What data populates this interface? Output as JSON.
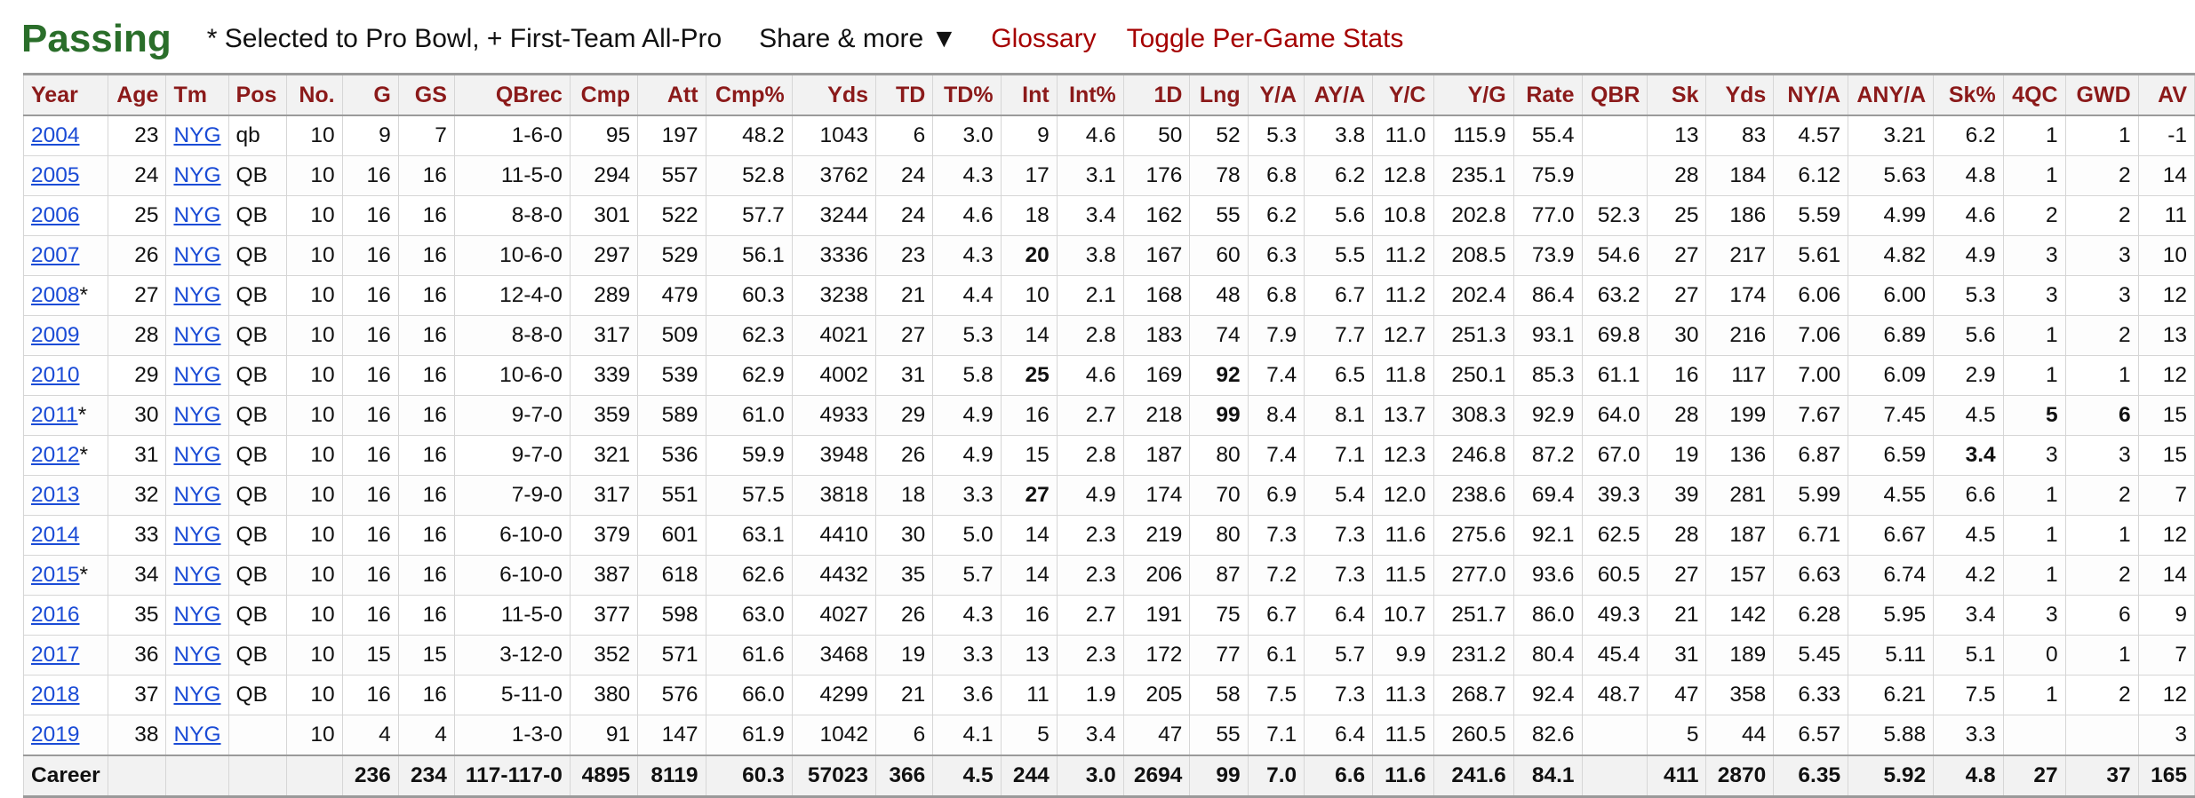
{
  "header": {
    "title": "Passing",
    "legend": "* Selected to Pro Bowl, + First-Team All-Pro",
    "share": "Share & more ▼",
    "glossary": "Glossary",
    "toggle": "Toggle Per-Game Stats"
  },
  "table": {
    "columns": [
      "Year",
      "Age",
      "Tm",
      "Pos",
      "No.",
      "G",
      "GS",
      "QBrec",
      "Cmp",
      "Att",
      "Cmp%",
      "Yds",
      "TD",
      "TD%",
      "Int",
      "Int%",
      "1D",
      "Lng",
      "Y/A",
      "AY/A",
      "Y/C",
      "Y/G",
      "Rate",
      "QBR",
      "Sk",
      "Yds",
      "NY/A",
      "ANY/A",
      "Sk%",
      "4QC",
      "GWD",
      "AV"
    ],
    "rows": [
      [
        "2004",
        "23",
        "NYG",
        "qb",
        "10",
        "9",
        "7",
        "1-6-0",
        "95",
        "197",
        "48.2",
        "1043",
        "6",
        "3.0",
        "9",
        "4.6",
        "50",
        "52",
        "5.3",
        "3.8",
        "11.0",
        "115.9",
        "55.4",
        "",
        "13",
        "83",
        "4.57",
        "3.21",
        "6.2",
        "1",
        "1",
        "-1"
      ],
      [
        "2005",
        "24",
        "NYG",
        "QB",
        "10",
        "16",
        "16",
        "11-5-0",
        "294",
        "557",
        "52.8",
        "3762",
        "24",
        "4.3",
        "17",
        "3.1",
        "176",
        "78",
        "6.8",
        "6.2",
        "12.8",
        "235.1",
        "75.9",
        "",
        "28",
        "184",
        "6.12",
        "5.63",
        "4.8",
        "1",
        "2",
        "14"
      ],
      [
        "2006",
        "25",
        "NYG",
        "QB",
        "10",
        "16",
        "16",
        "8-8-0",
        "301",
        "522",
        "57.7",
        "3244",
        "24",
        "4.6",
        "18",
        "3.4",
        "162",
        "55",
        "6.2",
        "5.6",
        "10.8",
        "202.8",
        "77.0",
        "52.3",
        "25",
        "186",
        "5.59",
        "4.99",
        "4.6",
        "2",
        "2",
        "11"
      ],
      [
        "2007",
        "26",
        "NYG",
        "QB",
        "10",
        "16",
        "16",
        "10-6-0",
        "297",
        "529",
        "56.1",
        "3336",
        "23",
        "4.3",
        "20",
        "3.8",
        "167",
        "60",
        "6.3",
        "5.5",
        "11.2",
        "208.5",
        "73.9",
        "54.6",
        "27",
        "217",
        "5.61",
        "4.82",
        "4.9",
        "3",
        "3",
        "10"
      ],
      [
        "2008*",
        "27",
        "NYG",
        "QB",
        "10",
        "16",
        "16",
        "12-4-0",
        "289",
        "479",
        "60.3",
        "3238",
        "21",
        "4.4",
        "10",
        "2.1",
        "168",
        "48",
        "6.8",
        "6.7",
        "11.2",
        "202.4",
        "86.4",
        "63.2",
        "27",
        "174",
        "6.06",
        "6.00",
        "5.3",
        "3",
        "3",
        "12"
      ],
      [
        "2009",
        "28",
        "NYG",
        "QB",
        "10",
        "16",
        "16",
        "8-8-0",
        "317",
        "509",
        "62.3",
        "4021",
        "27",
        "5.3",
        "14",
        "2.8",
        "183",
        "74",
        "7.9",
        "7.7",
        "12.7",
        "251.3",
        "93.1",
        "69.8",
        "30",
        "216",
        "7.06",
        "6.89",
        "5.6",
        "1",
        "2",
        "13"
      ],
      [
        "2010",
        "29",
        "NYG",
        "QB",
        "10",
        "16",
        "16",
        "10-6-0",
        "339",
        "539",
        "62.9",
        "4002",
        "31",
        "5.8",
        "25",
        "4.6",
        "169",
        "92",
        "7.4",
        "6.5",
        "11.8",
        "250.1",
        "85.3",
        "61.1",
        "16",
        "117",
        "7.00",
        "6.09",
        "2.9",
        "1",
        "1",
        "12"
      ],
      [
        "2011*",
        "30",
        "NYG",
        "QB",
        "10",
        "16",
        "16",
        "9-7-0",
        "359",
        "589",
        "61.0",
        "4933",
        "29",
        "4.9",
        "16",
        "2.7",
        "218",
        "99",
        "8.4",
        "8.1",
        "13.7",
        "308.3",
        "92.9",
        "64.0",
        "28",
        "199",
        "7.67",
        "7.45",
        "4.5",
        "5",
        "6",
        "15"
      ],
      [
        "2012*",
        "31",
        "NYG",
        "QB",
        "10",
        "16",
        "16",
        "9-7-0",
        "321",
        "536",
        "59.9",
        "3948",
        "26",
        "4.9",
        "15",
        "2.8",
        "187",
        "80",
        "7.4",
        "7.1",
        "12.3",
        "246.8",
        "87.2",
        "67.0",
        "19",
        "136",
        "6.87",
        "6.59",
        "3.4",
        "3",
        "3",
        "15"
      ],
      [
        "2013",
        "32",
        "NYG",
        "QB",
        "10",
        "16",
        "16",
        "7-9-0",
        "317",
        "551",
        "57.5",
        "3818",
        "18",
        "3.3",
        "27",
        "4.9",
        "174",
        "70",
        "6.9",
        "5.4",
        "12.0",
        "238.6",
        "69.4",
        "39.3",
        "39",
        "281",
        "5.99",
        "4.55",
        "6.6",
        "1",
        "2",
        "7"
      ],
      [
        "2014",
        "33",
        "NYG",
        "QB",
        "10",
        "16",
        "16",
        "6-10-0",
        "379",
        "601",
        "63.1",
        "4410",
        "30",
        "5.0",
        "14",
        "2.3",
        "219",
        "80",
        "7.3",
        "7.3",
        "11.6",
        "275.6",
        "92.1",
        "62.5",
        "28",
        "187",
        "6.71",
        "6.67",
        "4.5",
        "1",
        "1",
        "12"
      ],
      [
        "2015*",
        "34",
        "NYG",
        "QB",
        "10",
        "16",
        "16",
        "6-10-0",
        "387",
        "618",
        "62.6",
        "4432",
        "35",
        "5.7",
        "14",
        "2.3",
        "206",
        "87",
        "7.2",
        "7.3",
        "11.5",
        "277.0",
        "93.6",
        "60.5",
        "27",
        "157",
        "6.63",
        "6.74",
        "4.2",
        "1",
        "2",
        "14"
      ],
      [
        "2016",
        "35",
        "NYG",
        "QB",
        "10",
        "16",
        "16",
        "11-5-0",
        "377",
        "598",
        "63.0",
        "4027",
        "26",
        "4.3",
        "16",
        "2.7",
        "191",
        "75",
        "6.7",
        "6.4",
        "10.7",
        "251.7",
        "86.0",
        "49.3",
        "21",
        "142",
        "6.28",
        "5.95",
        "3.4",
        "3",
        "6",
        "9"
      ],
      [
        "2017",
        "36",
        "NYG",
        "QB",
        "10",
        "15",
        "15",
        "3-12-0",
        "352",
        "571",
        "61.6",
        "3468",
        "19",
        "3.3",
        "13",
        "2.3",
        "172",
        "77",
        "6.1",
        "5.7",
        "9.9",
        "231.2",
        "80.4",
        "45.4",
        "31",
        "189",
        "5.45",
        "5.11",
        "5.1",
        "0",
        "1",
        "7"
      ],
      [
        "2018",
        "37",
        "NYG",
        "QB",
        "10",
        "16",
        "16",
        "5-11-0",
        "380",
        "576",
        "66.0",
        "4299",
        "21",
        "3.6",
        "11",
        "1.9",
        "205",
        "58",
        "7.5",
        "7.3",
        "11.3",
        "268.7",
        "92.4",
        "48.7",
        "47",
        "358",
        "6.33",
        "6.21",
        "7.5",
        "1",
        "2",
        "12"
      ],
      [
        "2019",
        "38",
        "NYG",
        "",
        "10",
        "4",
        "4",
        "1-3-0",
        "91",
        "147",
        "61.9",
        "1042",
        "6",
        "4.1",
        "5",
        "3.4",
        "47",
        "55",
        "7.1",
        "6.4",
        "11.5",
        "260.5",
        "82.6",
        "",
        "5",
        "44",
        "6.57",
        "5.88",
        "3.3",
        "",
        "",
        "3"
      ]
    ],
    "bold_cells": [
      [
        3,
        14
      ],
      [
        6,
        14
      ],
      [
        6,
        17
      ],
      [
        7,
        17
      ],
      [
        7,
        29
      ],
      [
        7,
        30
      ],
      [
        8,
        28
      ],
      [
        9,
        14
      ]
    ],
    "career": [
      "Career",
      "",
      "",
      "",
      "",
      "236",
      "234",
      "117-117-0",
      "4895",
      "8119",
      "60.3",
      "57023",
      "366",
      "4.5",
      "244",
      "3.0",
      "2694",
      "99",
      "7.0",
      "6.6",
      "11.6",
      "241.6",
      "84.1",
      "",
      "411",
      "2870",
      "6.35",
      "5.92",
      "4.8",
      "27",
      "37",
      "165"
    ]
  },
  "colors": {
    "title": "#2a6e2a",
    "header_text": "#8b1a1a",
    "link": "#1a4bd6",
    "accent_link": "#a50000"
  }
}
